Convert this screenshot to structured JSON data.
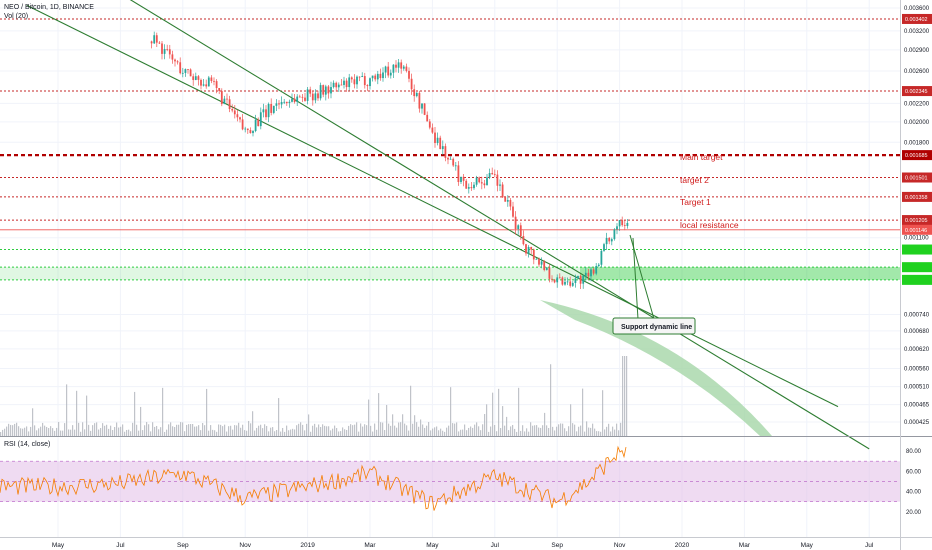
{
  "chart_data": {
    "type": "candlestick",
    "title": "NEO / Bitcoin, 1D, BINANCE",
    "volume_label": "Vol (20)",
    "rsi_label": "RSI (14, close)",
    "xlabel": "",
    "ylabel": "",
    "ylim": [
      0.00037,
      0.0038
    ],
    "log_scale": true,
    "price_ticks": [
      "0.003600",
      "0.003200",
      "0.002900",
      "0.002600",
      "0.002200",
      "0.002000",
      "0.001800",
      "0.001100",
      "0.000740",
      "0.000680",
      "0.000620",
      "0.000560",
      "0.000510",
      "0.000465",
      "0.000425"
    ],
    "x_ticks": [
      "May",
      "Jul",
      "Sep",
      "Nov",
      "2019",
      "Mar",
      "May",
      "Jul",
      "Sep",
      "Nov",
      "2020",
      "Mar",
      "May",
      "Jul"
    ],
    "rsi_ticks": [
      "80.00",
      "60.00",
      "40.00",
      "20.00"
    ],
    "rsi_ylim": [
      5,
      90
    ],
    "rsi_band": [
      30,
      70
    ],
    "horizontal_levels": [
      {
        "value": 0.003402,
        "label": "0.003402",
        "color": "#c62828",
        "style": "dotted"
      },
      {
        "value": 0.002345,
        "label": "0.002345",
        "color": "#c62828",
        "style": "dotted"
      },
      {
        "value": 0.001685,
        "label": "0.001685",
        "color": "#b00000",
        "style": "dashed-thick",
        "annotation": "Main target"
      },
      {
        "value": 0.001501,
        "label": "0.001501",
        "color": "#c62828",
        "style": "dotted",
        "annotation": "target 2"
      },
      {
        "value": 0.001358,
        "label": "0.001358",
        "color": "#c62828",
        "style": "dotted",
        "annotation": "Target 1"
      },
      {
        "value": 0.001205,
        "label": "0.001205",
        "color": "#c62828",
        "style": "dotted",
        "annotation": "local resistance"
      },
      {
        "value": 0.001146,
        "label": "0.001146",
        "color": "#ef5350",
        "style": "solid-thin"
      },
      {
        "value": 0.001035,
        "label": "",
        "color": "#2ecc40",
        "style": "dotted"
      },
      {
        "value": 0.000945,
        "label": "",
        "color": "#2ecc40",
        "style": "dotted"
      },
      {
        "value": 0.000885,
        "label": "",
        "color": "#2ecc40",
        "style": "dotted"
      }
    ],
    "green_zone": [
      0.000885,
      0.000945
    ],
    "callout": "Support dynamic line",
    "trendlines": [
      {
        "from": [
          "Apr 2018",
          0.00365
        ],
        "to": [
          "Jun 2020",
          0.00046
        ],
        "color": "#2e7d32"
      },
      {
        "from": [
          "Apr 2018",
          0.0052
        ],
        "to": [
          "Jul 2020",
          0.00037
        ],
        "color": "#2e7d32"
      }
    ],
    "price_series": [
      [
        "Aug 2018",
        0.0031
      ],
      [
        "Sep 2018",
        0.0026
      ],
      [
        "Oct 2018",
        0.0024
      ],
      [
        "Nov 2018",
        0.0019
      ],
      [
        "Dec 2018",
        0.0022
      ],
      [
        "Jan 2019",
        0.0023
      ],
      [
        "Feb 2019",
        0.0024
      ],
      [
        "Mar 2019",
        0.0025
      ],
      [
        "Apr 2019",
        0.0027
      ],
      [
        "May 2019",
        0.0019
      ],
      [
        "Jun 2019",
        0.00145
      ],
      [
        "Jul 2019",
        0.0015
      ],
      [
        "Aug 2019",
        0.00105
      ],
      [
        "Sep 2019",
        0.00088
      ],
      [
        "Oct 2019",
        0.00089
      ],
      [
        "Nov 2019",
        0.00121
      ]
    ],
    "rsi_series": [
      [
        "May 2018",
        45
      ],
      [
        "Jul 2018",
        48
      ],
      [
        "Sep 2018",
        58
      ],
      [
        "Nov 2018",
        33
      ],
      [
        "Jan 2019",
        45
      ],
      [
        "Mar 2019",
        58
      ],
      [
        "May 2019",
        28
      ],
      [
        "Jul 2019",
        55
      ],
      [
        "Sep 2019",
        30
      ],
      [
        "Oct 2019",
        50
      ],
      [
        "Nov 2019",
        80
      ]
    ]
  },
  "colors": {
    "up_candle": "#26a69a",
    "down_candle": "#ef5350",
    "volume": "#b0b4bc",
    "rsi_line": "#f57c00",
    "rsi_band": "#e1bee7",
    "trend": "#2e7d32",
    "cone": "#a5d6a7"
  }
}
